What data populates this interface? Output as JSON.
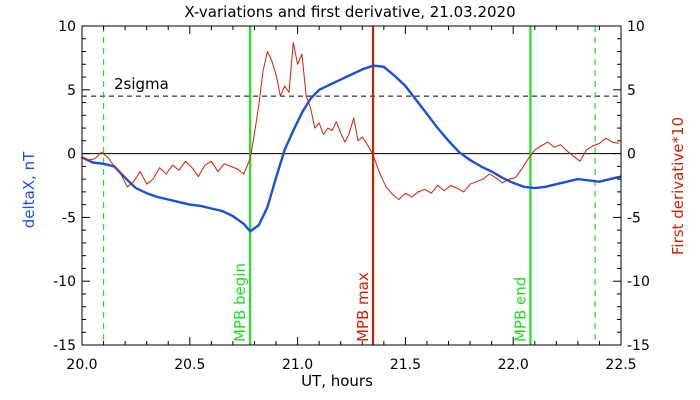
{
  "chart_data": {
    "type": "line",
    "title": "X-variations and first derivative, 21.03.2020",
    "xlabel": "UT, hours",
    "ylabel_left": "deltaX, nT",
    "ylabel_right": "First derivative*10",
    "xlim": [
      20.0,
      22.5
    ],
    "ylim": [
      -15,
      10
    ],
    "x_ticks": [
      "20.0",
      "20.5",
      "21.0",
      "21.5",
      "22.0",
      "22.5"
    ],
    "y_ticks": [
      "10",
      "5",
      "0",
      "-5",
      "-10",
      "-15"
    ],
    "colors": {
      "deltaX": "#1a4fd8",
      "derivative": "#cc2200",
      "mpb_begin": "#22dd22",
      "mpb_end": "#22dd22",
      "mpb_max": "#cc2200",
      "sigma_dashed": "#22dd22"
    },
    "threshold": {
      "label": "2sigma",
      "value": 4.5
    },
    "zero_line": 0,
    "vertical_markers": [
      {
        "label": "MPB begin",
        "x": 20.78,
        "color": "#22dd22"
      },
      {
        "label": "MPB max",
        "x": 21.35,
        "color": "#cc2200"
      },
      {
        "label": "MPB end",
        "x": 22.08,
        "color": "#22dd22"
      }
    ],
    "dashed_markers": [
      20.1,
      22.38
    ],
    "series": [
      {
        "key": "deltaX",
        "x": [
          20.0,
          20.05,
          20.1,
          20.15,
          20.2,
          20.25,
          20.3,
          20.35,
          20.4,
          20.45,
          20.5,
          20.55,
          20.6,
          20.65,
          20.7,
          20.75,
          20.78,
          20.82,
          20.86,
          20.9,
          20.94,
          20.98,
          21.02,
          21.06,
          21.1,
          21.15,
          21.2,
          21.25,
          21.3,
          21.35,
          21.4,
          21.45,
          21.5,
          21.55,
          21.6,
          21.65,
          21.7,
          21.75,
          21.8,
          21.85,
          21.9,
          21.95,
          22.0,
          22.05,
          22.1,
          22.15,
          22.2,
          22.25,
          22.3,
          22.35,
          22.4,
          22.45,
          22.5
        ],
        "values": [
          -0.3,
          -0.7,
          -0.8,
          -1.0,
          -1.9,
          -2.7,
          -3.1,
          -3.4,
          -3.6,
          -3.8,
          -4.0,
          -4.1,
          -4.3,
          -4.5,
          -4.9,
          -5.5,
          -6.1,
          -5.6,
          -4.2,
          -1.9,
          0.3,
          1.8,
          3.2,
          4.3,
          5.0,
          5.4,
          5.8,
          6.2,
          6.6,
          6.9,
          6.8,
          6.1,
          5.3,
          4.2,
          3.1,
          2.0,
          1.0,
          0.1,
          -0.5,
          -1.0,
          -1.4,
          -1.9,
          -2.3,
          -2.6,
          -2.7,
          -2.6,
          -2.4,
          -2.2,
          -2.0,
          -2.1,
          -2.2,
          -2.0,
          -1.8
        ]
      },
      {
        "key": "derivative",
        "x": [
          20.0,
          20.03,
          20.06,
          20.09,
          20.12,
          20.15,
          20.18,
          20.21,
          20.24,
          20.27,
          20.3,
          20.33,
          20.36,
          20.39,
          20.42,
          20.45,
          20.48,
          20.51,
          20.54,
          20.57,
          20.6,
          20.63,
          20.66,
          20.69,
          20.72,
          20.75,
          20.78,
          20.8,
          20.82,
          20.84,
          20.86,
          20.88,
          20.9,
          20.92,
          20.94,
          20.96,
          20.98,
          21.0,
          21.02,
          21.04,
          21.06,
          21.08,
          21.1,
          21.12,
          21.14,
          21.16,
          21.18,
          21.2,
          21.22,
          21.24,
          21.26,
          21.28,
          21.3,
          21.32,
          21.35,
          21.38,
          21.41,
          21.44,
          21.47,
          21.5,
          21.53,
          21.56,
          21.59,
          21.62,
          21.65,
          21.68,
          21.71,
          21.74,
          21.77,
          21.8,
          21.83,
          21.86,
          21.89,
          21.92,
          21.95,
          21.98,
          22.01,
          22.04,
          22.07,
          22.1,
          22.13,
          22.16,
          22.19,
          22.22,
          22.25,
          22.28,
          22.31,
          22.34,
          22.37,
          22.4,
          22.43,
          22.46,
          22.49
        ],
        "values": [
          -0.3,
          -0.5,
          -0.4,
          0.1,
          -0.3,
          -1.0,
          -1.6,
          -2.6,
          -2.2,
          -1.4,
          -2.4,
          -2.0,
          -1.1,
          -1.6,
          -0.9,
          -1.3,
          -0.6,
          -1.1,
          -1.8,
          -0.9,
          -0.6,
          -1.4,
          -0.8,
          -1.0,
          -1.2,
          -1.6,
          -0.4,
          1.6,
          3.8,
          6.5,
          8.0,
          7.3,
          6.2,
          4.5,
          5.3,
          4.8,
          8.7,
          7.0,
          7.8,
          4.5,
          3.6,
          2.0,
          2.4,
          1.5,
          2.0,
          1.8,
          2.5,
          1.6,
          0.9,
          1.6,
          2.8,
          1.0,
          1.3,
          0.8,
          -0.1,
          -1.5,
          -2.6,
          -3.2,
          -3.6,
          -3.1,
          -3.4,
          -3.0,
          -2.8,
          -3.1,
          -2.5,
          -2.9,
          -2.5,
          -2.7,
          -3.0,
          -2.4,
          -2.2,
          -2.0,
          -1.6,
          -1.9,
          -2.3,
          -2.0,
          -1.9,
          -1.2,
          -0.4,
          0.3,
          0.6,
          0.9,
          0.5,
          0.7,
          0.2,
          -0.2,
          -0.6,
          0.3,
          0.6,
          0.8,
          1.2,
          0.9,
          0.8
        ]
      }
    ]
  }
}
